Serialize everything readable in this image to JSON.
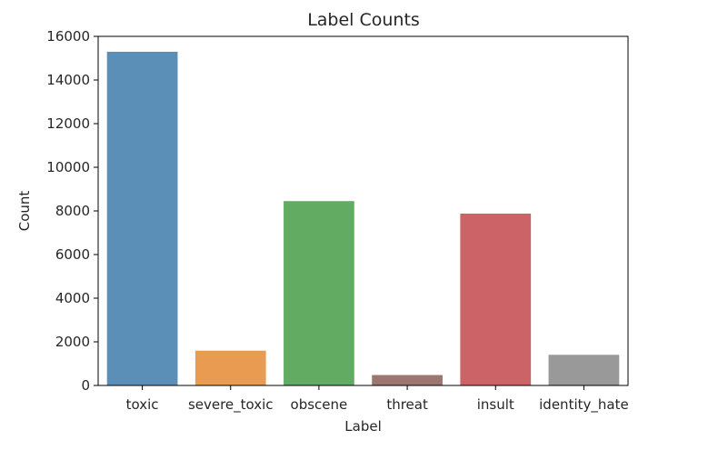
{
  "chart_data": {
    "type": "bar",
    "title": "Label Counts",
    "xlabel": "Label",
    "ylabel": "Count",
    "categories": [
      "toxic",
      "severe_toxic",
      "obscene",
      "threat",
      "insult",
      "identity_hate"
    ],
    "values": [
      15294,
      1595,
      8449,
      478,
      7877,
      1405
    ],
    "colors": [
      "#5b8fb8",
      "#e99b51",
      "#62ab62",
      "#9b7770",
      "#cc6366",
      "#999999"
    ],
    "ylim": [
      0,
      16000
    ],
    "yticks": [
      0,
      2000,
      4000,
      6000,
      8000,
      10000,
      12000,
      14000,
      16000
    ],
    "ytick_labels": [
      "0",
      "2000",
      "4000",
      "6000",
      "8000",
      "10000",
      "12000",
      "14000",
      "16000"
    ],
    "grid": false,
    "legend": "none"
  }
}
